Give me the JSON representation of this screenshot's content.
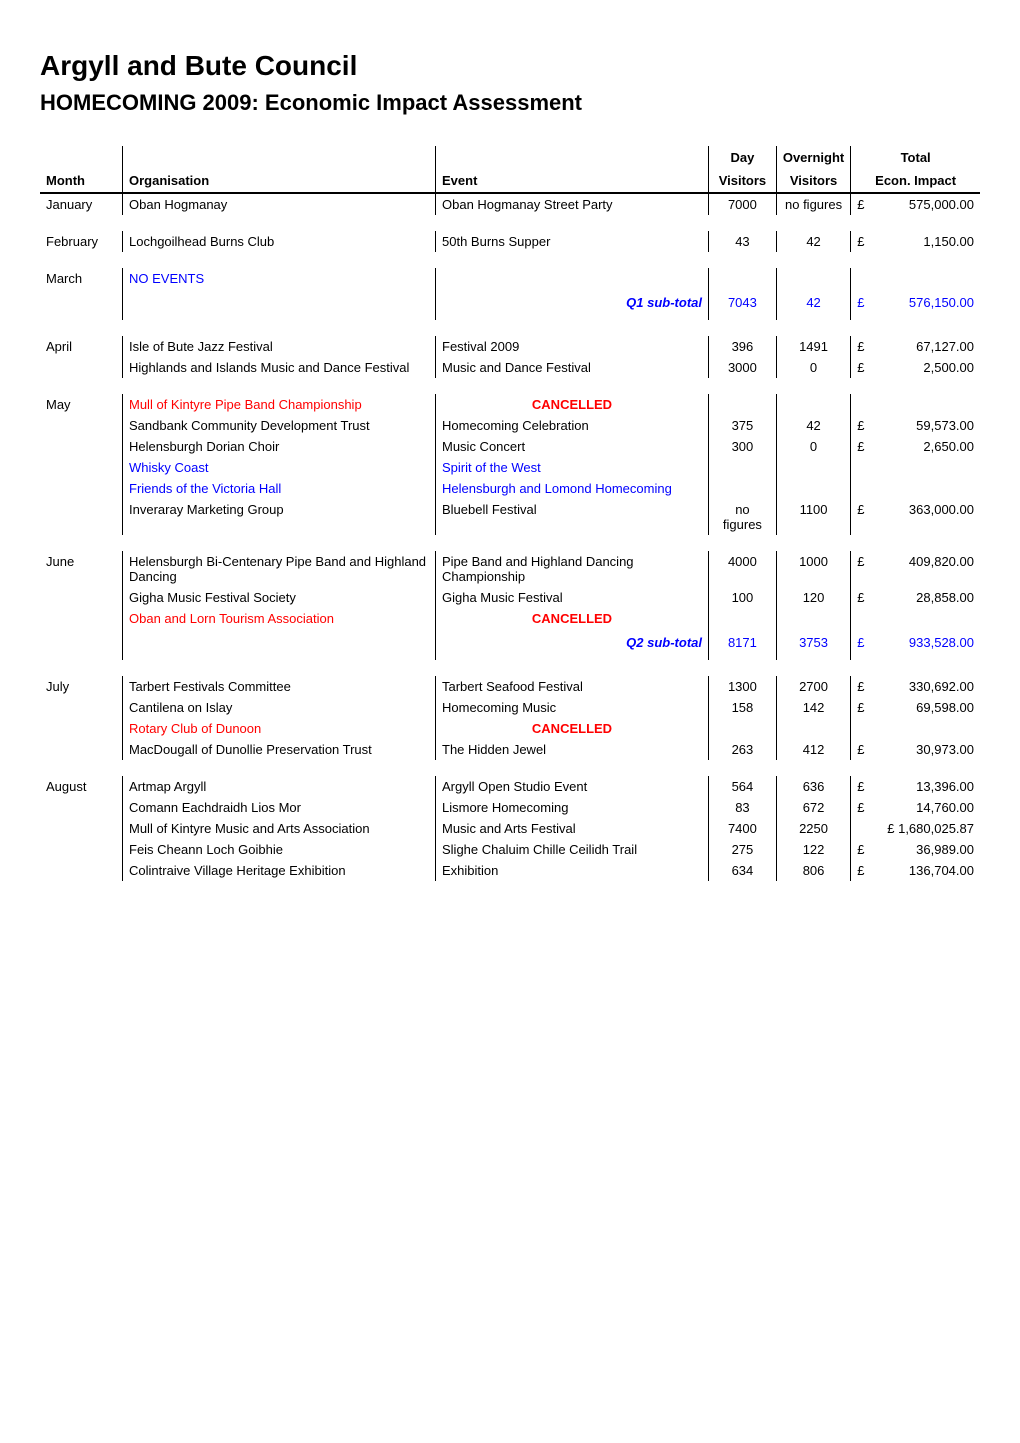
{
  "title": "Argyll and Bute Council",
  "subtitle": "HOMECOMING 2009: Economic Impact Assessment",
  "headers": {
    "month": "Month",
    "organisation": "Organisation",
    "event": "Event",
    "day_visitors_1": "Day",
    "day_visitors_2": "Visitors",
    "overnight_1": "Overnight",
    "overnight_2": "Visitors",
    "total_1": "Total",
    "total_2": "Econ. Impact"
  },
  "rows": [
    {
      "type": "month",
      "month": "January",
      "org": "Oban Hogmanay",
      "event": "Oban Hogmanay Street Party",
      "day": "7000",
      "night": "no figures",
      "cur": "£",
      "amt": "575,000.00"
    },
    {
      "type": "spacer"
    },
    {
      "type": "month",
      "month": "February",
      "org": "Lochgoilhead Burns Club",
      "event": "50th Burns Supper",
      "day": "43",
      "night": "42",
      "cur": "£",
      "amt": "1,150.00"
    },
    {
      "type": "spacer"
    },
    {
      "type": "month",
      "month": "March",
      "org": "NO EVENTS",
      "org_blue": true
    },
    {
      "type": "subtotal",
      "label": "Q1 sub-total",
      "day": "7043",
      "night": "42",
      "cur": "£",
      "amt": "576,150.00"
    },
    {
      "type": "spacer"
    },
    {
      "type": "month",
      "month": "April",
      "org": "Isle of Bute Jazz Festival",
      "event": "Festival 2009",
      "day": "396",
      "night": "1491",
      "cur": "£",
      "amt": "67,127.00"
    },
    {
      "type": "row",
      "org": "Highlands and Islands Music and Dance Festival",
      "event": "Music and Dance Festival",
      "day": "3000",
      "night": "0",
      "cur": "£",
      "amt": "2,500.00"
    },
    {
      "type": "spacer"
    },
    {
      "type": "month",
      "month": "May",
      "org": "Mull of Kintyre Pipe Band Championship",
      "org_red": true,
      "event": "CANCELLED",
      "event_red": true,
      "event_center": true
    },
    {
      "type": "row",
      "org": "Sandbank Community Development Trust",
      "event": "Homecoming Celebration",
      "day": "375",
      "night": "42",
      "cur": "£",
      "amt": "59,573.00"
    },
    {
      "type": "row",
      "org": "Helensburgh Dorian Choir",
      "event": "Music Concert",
      "day": "300",
      "night": "0",
      "cur": "£",
      "amt": "2,650.00"
    },
    {
      "type": "row",
      "org": "Whisky Coast",
      "org_blue": true,
      "event": "Spirit of the West",
      "event_blue": true
    },
    {
      "type": "row",
      "org": "Friends of the Victoria Hall",
      "org_blue": true,
      "event": "Helensburgh and Lomond Homecoming",
      "event_blue": true
    },
    {
      "type": "row",
      "org": "Inveraray Marketing Group",
      "event": "Bluebell Festival",
      "day": "no figures",
      "night": "1100",
      "cur": "£",
      "amt": "363,000.00"
    },
    {
      "type": "spacer"
    },
    {
      "type": "month",
      "month": "June",
      "org": "Helensburgh Bi-Centenary Pipe Band and Highland Dancing",
      "event": "Pipe Band and Highland Dancing Championship",
      "day": "4000",
      "night": "1000",
      "cur": "£",
      "amt": "409,820.00"
    },
    {
      "type": "row",
      "org": "Gigha Music Festival Society",
      "event": "Gigha Music Festival",
      "day": "100",
      "night": "120",
      "cur": "£",
      "amt": "28,858.00"
    },
    {
      "type": "row",
      "org": "Oban and Lorn Tourism Association",
      "org_red": true,
      "event": "CANCELLED",
      "event_red": true,
      "event_center": true
    },
    {
      "type": "subtotal",
      "label": "Q2 sub-total",
      "day": "8171",
      "night": "3753",
      "cur": "£",
      "amt": "933,528.00"
    },
    {
      "type": "spacer"
    },
    {
      "type": "month",
      "month": "July",
      "org": "Tarbert Festivals Committee",
      "event": "Tarbert Seafood Festival",
      "day": "1300",
      "night": "2700",
      "cur": "£",
      "amt": "330,692.00"
    },
    {
      "type": "row",
      "org": "Cantilena on Islay",
      "event": "Homecoming Music",
      "day": "158",
      "night": "142",
      "cur": "£",
      "amt": "69,598.00"
    },
    {
      "type": "row",
      "org": "Rotary Club of Dunoon",
      "org_red": true,
      "event": "CANCELLED",
      "event_red": true,
      "event_center": true
    },
    {
      "type": "row",
      "org": "MacDougall of Dunollie Preservation Trust",
      "event": "The Hidden Jewel",
      "day": "263",
      "night": "412",
      "cur": "£",
      "amt": "30,973.00"
    },
    {
      "type": "spacer"
    },
    {
      "type": "month",
      "month": "August",
      "org": "Artmap Argyll",
      "event": "Argyll Open Studio Event",
      "day": "564",
      "night": "636",
      "cur": "£",
      "amt": "13,396.00"
    },
    {
      "type": "row",
      "org": "Comann Eachdraidh Lios Mor",
      "event": "Lismore Homecoming",
      "day": "83",
      "night": "672",
      "cur": "£",
      "amt": "14,760.00"
    },
    {
      "type": "row",
      "org": "Mull of Kintyre Music and Arts Association",
      "event": "Music and Arts Festival",
      "day": "7400",
      "night": "2250",
      "cur": "",
      "amt": "£ 1,680,025.87"
    },
    {
      "type": "row",
      "org": "Feis Cheann Loch Goibhie",
      "event": "Slighe Chaluim Chille Ceilidh Trail",
      "day": "275",
      "night": "122",
      "cur": "£",
      "amt": "36,989.00"
    },
    {
      "type": "row",
      "org": "Colintraive Village Heritage Exhibition",
      "event": "Exhibition",
      "day": "634",
      "night": "806",
      "cur": "£",
      "amt": "136,704.00"
    }
  ]
}
